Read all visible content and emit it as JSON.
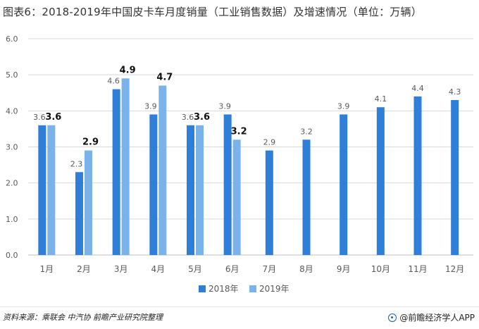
{
  "title": "图表6：2018-2019年中国皮卡车月度销量（工业销售数据）及增速情况（单位：万辆）",
  "source": {
    "label": "资料来源：",
    "text": "乘联会 中汽协 前瞻产业研究院整理"
  },
  "brand": {
    "icon": "qianzhan-logo-icon",
    "text": "@前瞻经济学人APP"
  },
  "colors": {
    "series2018": "#2f7ed8",
    "series2019": "#7ab2ea",
    "grid": "#d9d9d9",
    "axis": "#bfbfbf",
    "text": "#595959",
    "label2019": "#111111"
  },
  "chart_data": {
    "type": "bar",
    "title": "图表6：2018-2019年中国皮卡车月度销量（工业销售数据）及增速情况（单位：万辆）",
    "xlabel": "",
    "ylabel": "",
    "ylim": [
      0,
      6
    ],
    "yticks": [
      "0.0",
      "1.0",
      "2.0",
      "3.0",
      "4.0",
      "5.0",
      "6.0"
    ],
    "ytick_values": [
      0,
      1,
      2,
      3,
      4,
      5,
      6
    ],
    "grid": true,
    "legend_position": "bottom",
    "categories": [
      "1月",
      "2月",
      "3月",
      "4月",
      "5月",
      "6月",
      "7月",
      "8月",
      "9月",
      "10月",
      "11月",
      "12月"
    ],
    "series": [
      {
        "name": "2018年",
        "values": [
          3.6,
          2.3,
          4.6,
          3.9,
          3.6,
          3.9,
          2.9,
          3.2,
          3.9,
          4.1,
          4.4,
          4.3
        ],
        "labels": [
          "3.6",
          "2.3",
          "4.6",
          "3.9",
          "3.6",
          "3.9",
          "2.9",
          "3.2",
          "3.9",
          "4.1",
          "4.4",
          "4.3"
        ]
      },
      {
        "name": "2019年",
        "values": [
          3.6,
          2.9,
          4.9,
          4.7,
          3.6,
          3.2,
          null,
          null,
          null,
          null,
          null,
          null
        ],
        "labels": [
          "3.6",
          "2.9",
          "4.9",
          "4.7",
          "3.6",
          "3.2",
          null,
          null,
          null,
          null,
          null,
          null
        ]
      }
    ]
  }
}
